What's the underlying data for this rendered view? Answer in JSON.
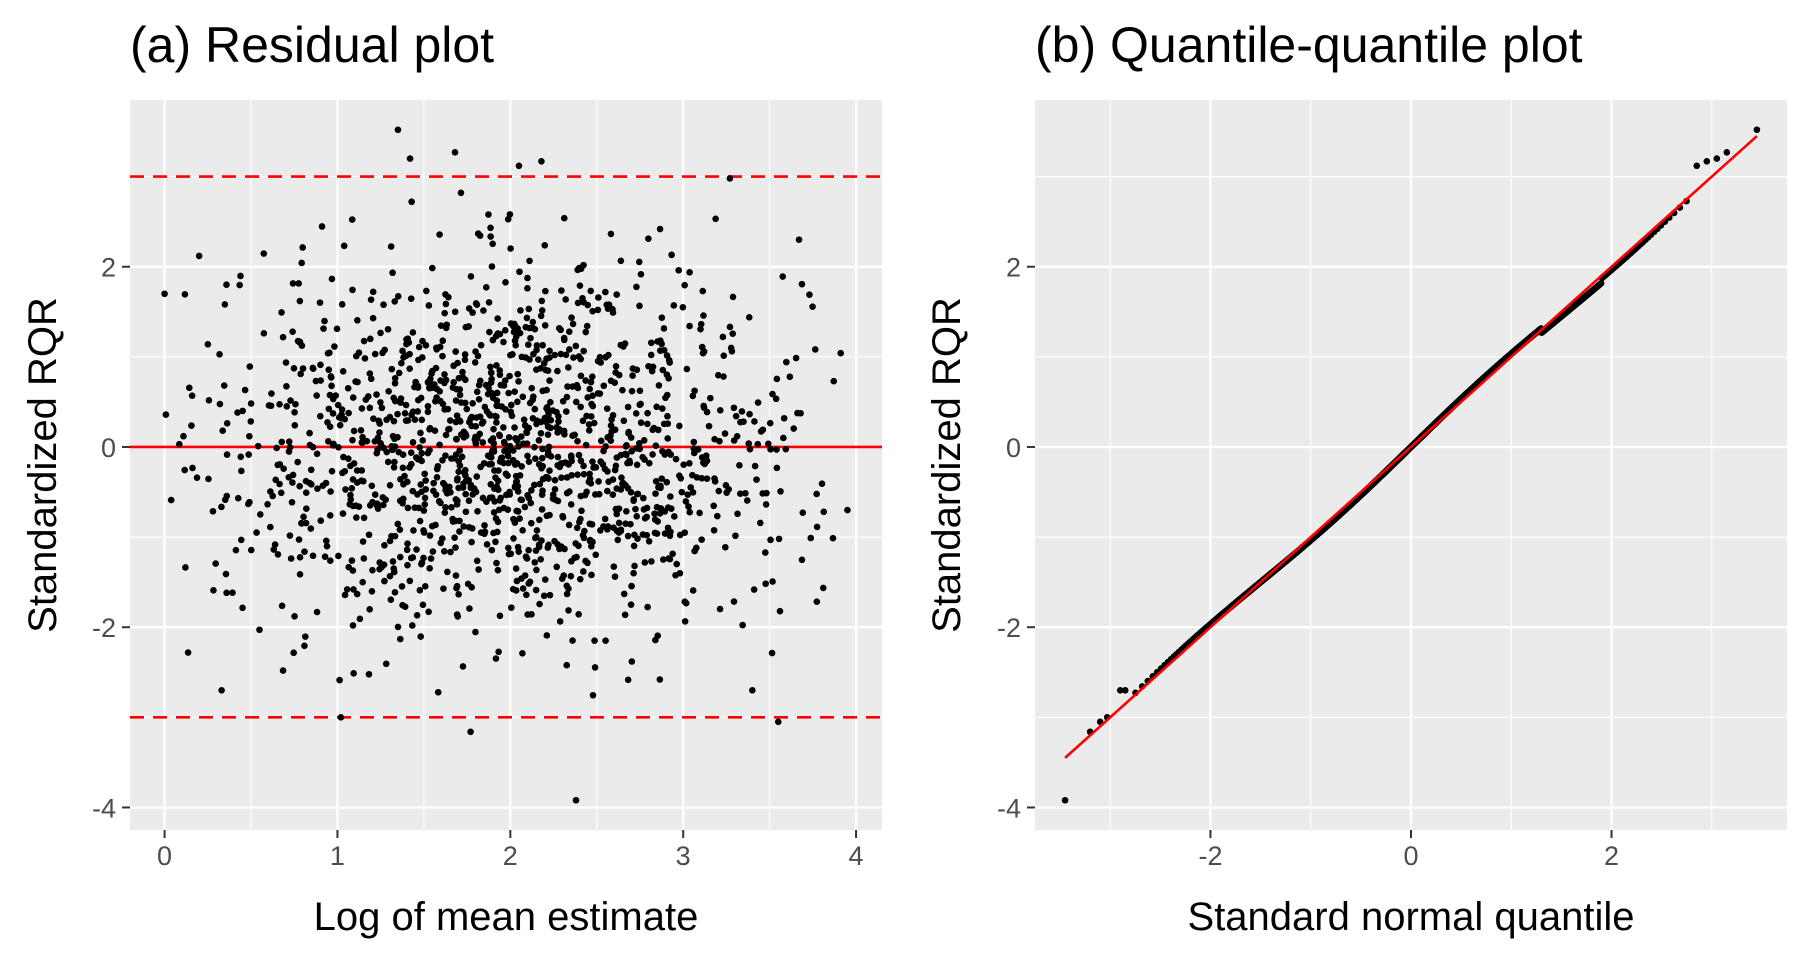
{
  "chart_data": [
    {
      "type": "scatter",
      "title": "(a) Residual plot",
      "xlabel": "Log of mean estimate",
      "ylabel": "Standardized RQR",
      "xlim": [
        -0.2,
        4.15
      ],
      "ylim": [
        -4.25,
        3.85
      ],
      "xticks": [
        0,
        1,
        2,
        3,
        4
      ],
      "yticks": [
        -4,
        -2,
        0,
        2
      ],
      "grid": true,
      "reference_lines": [
        {
          "y": 0,
          "style": "solid",
          "color": "#ff0000"
        },
        {
          "y": 3,
          "style": "dashed",
          "color": "#ff0000"
        },
        {
          "y": -3,
          "style": "dashed",
          "color": "#ff0000"
        }
      ],
      "n_points": 1500,
      "distribution": {
        "x": "approximately normal, mean about 2.0, sd about 0.85, range 0 to 3.95",
        "y": "approximately standard normal"
      },
      "notable_points": [
        {
          "x": 1.35,
          "y": 3.52
        },
        {
          "x": 1.42,
          "y": 3.2
        },
        {
          "x": 1.68,
          "y": 3.27
        },
        {
          "x": 2.05,
          "y": 3.12
        },
        {
          "x": 2.18,
          "y": 3.17
        },
        {
          "x": 3.27,
          "y": 2.98
        },
        {
          "x": 1.77,
          "y": -3.16
        },
        {
          "x": 1.02,
          "y": -3.0
        },
        {
          "x": 3.55,
          "y": -3.05
        },
        {
          "x": 2.38,
          "y": -3.92
        },
        {
          "x": 0.33,
          "y": -2.7
        },
        {
          "x": 3.4,
          "y": -2.7
        },
        {
          "x": 0.0,
          "y": 1.7
        },
        {
          "x": 3.95,
          "y": -0.7
        },
        {
          "x": 3.67,
          "y": 2.3
        },
        {
          "x": 0.2,
          "y": 2.12
        }
      ],
      "point_color": "#000000"
    },
    {
      "type": "scatter",
      "title": "(b) Quantile-quantile plot",
      "xlabel": "Standard normal quantile",
      "ylabel": "Standardized RQR",
      "xlim": [
        -3.75,
        3.75
      ],
      "ylim": [
        -4.25,
        3.85
      ],
      "xticks": [
        -2,
        0,
        2
      ],
      "yticks": [
        -4,
        -2,
        0,
        2
      ],
      "grid": true,
      "n_points": 1500,
      "reference_line": {
        "slope": 1.0,
        "intercept": 0,
        "x_range": [
          -3.45,
          3.45
        ],
        "color": "#ff0000"
      },
      "tail_points": [
        {
          "x": -3.45,
          "y": -3.92
        },
        {
          "x": -3.2,
          "y": -3.16
        },
        {
          "x": -3.1,
          "y": -3.05
        },
        {
          "x": -3.03,
          "y": -3.0
        },
        {
          "x": -2.9,
          "y": -2.7
        },
        {
          "x": -2.85,
          "y": -2.7
        },
        {
          "x": 2.85,
          "y": 3.12
        },
        {
          "x": 2.95,
          "y": 3.17
        },
        {
          "x": 3.05,
          "y": 3.2
        },
        {
          "x": 3.15,
          "y": 3.27
        },
        {
          "x": 3.45,
          "y": 3.52
        }
      ],
      "point_color": "#000000"
    }
  ]
}
